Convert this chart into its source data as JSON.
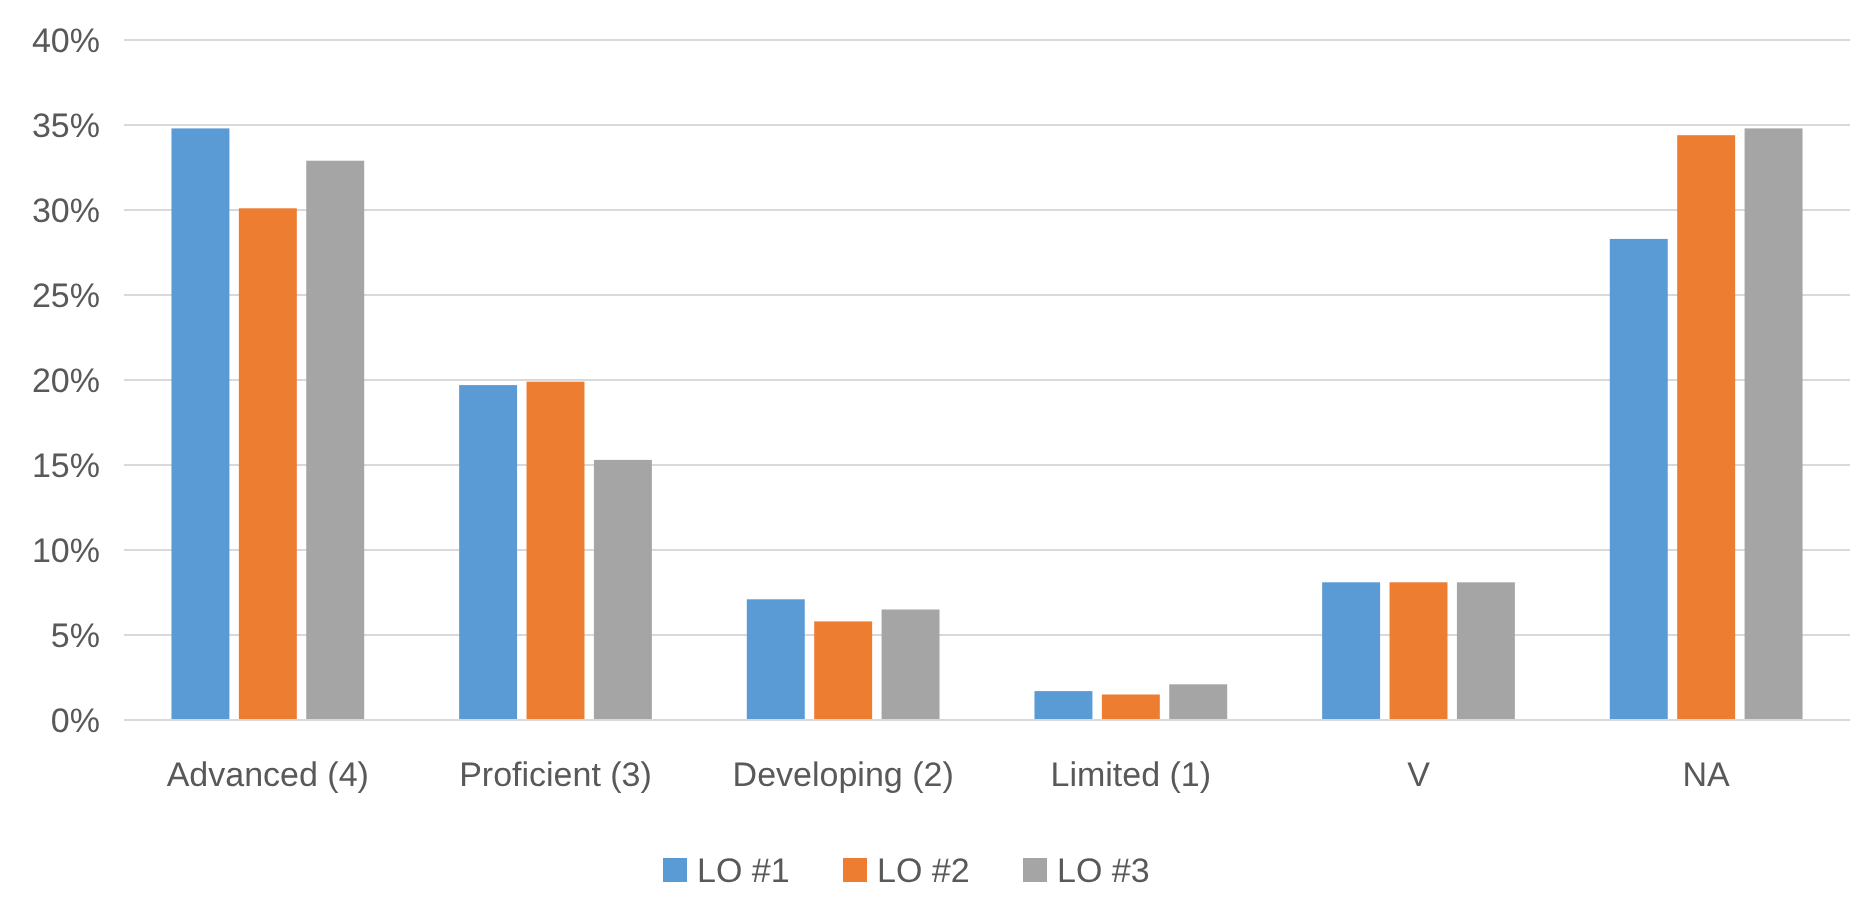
{
  "chart_data": {
    "type": "bar",
    "categories": [
      "Advanced (4)",
      "Proficient (3)",
      "Developing (2)",
      "Limited (1)",
      "V",
      "NA"
    ],
    "series": [
      {
        "name": "LO #1",
        "color": "#5b9bd5",
        "values": [
          34.8,
          19.7,
          7.1,
          1.7,
          8.1,
          28.3
        ]
      },
      {
        "name": "LO #2",
        "color": "#ed7d31",
        "values": [
          30.1,
          19.9,
          5.8,
          1.5,
          8.1,
          34.4
        ]
      },
      {
        "name": "LO #3",
        "color": "#a5a5a5",
        "values": [
          32.9,
          15.3,
          6.5,
          2.1,
          8.1,
          34.8
        ]
      }
    ],
    "ylim": [
      0,
      40
    ],
    "yticks": [
      {
        "value": 0,
        "label": "0%"
      },
      {
        "value": 5,
        "label": "5%"
      },
      {
        "value": 10,
        "label": "10%"
      },
      {
        "value": 15,
        "label": "15%"
      },
      {
        "value": 20,
        "label": "20%"
      },
      {
        "value": 25,
        "label": "25%"
      },
      {
        "value": 30,
        "label": "30%"
      },
      {
        "value": 35,
        "label": "35%"
      },
      {
        "value": 40,
        "label": "40%"
      }
    ],
    "grid": "y",
    "legend": "bottom"
  }
}
